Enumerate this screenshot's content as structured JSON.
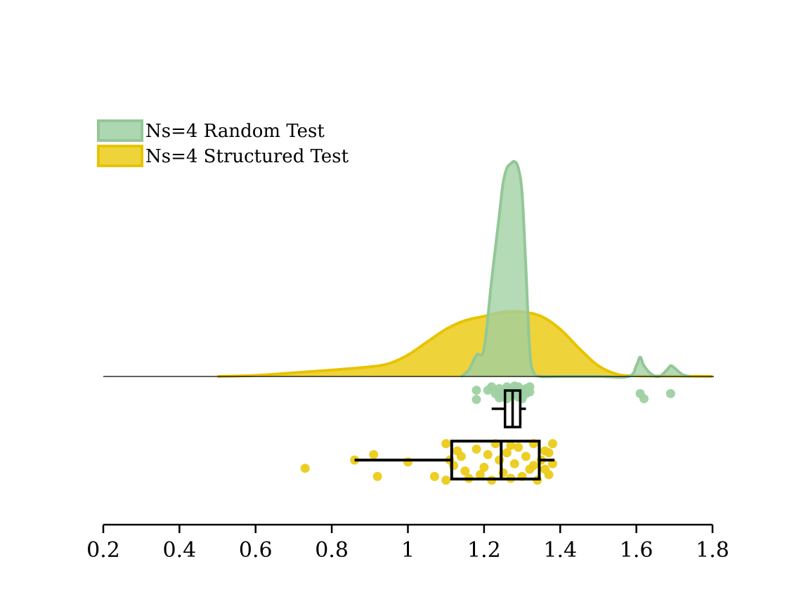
{
  "chart_data": {
    "type": "raincloud",
    "title": "",
    "xlabel": "",
    "ylabel": "",
    "xlim": [
      0.2,
      1.8
    ],
    "x_ticks": [
      0.2,
      0.4,
      0.6,
      0.8,
      1,
      1.2,
      1.4,
      1.6,
      1.8
    ],
    "x_tick_labels": [
      "0.2",
      "0.4",
      "0.6",
      "0.8",
      "1",
      "1.2",
      "1.4",
      "1.6",
      "1.8"
    ],
    "grid": false,
    "legend_position": "top-left",
    "series": [
      {
        "name": "Ns=4 Random Test",
        "color": "#9fd0a2",
        "edge_color": "#93c796",
        "density": {
          "x": [
            1.14,
            1.16,
            1.18,
            1.2,
            1.22,
            1.24,
            1.25,
            1.26,
            1.27,
            1.28,
            1.29,
            1.3,
            1.31,
            1.32,
            1.33,
            1.35,
            1.4,
            1.5,
            1.58,
            1.6,
            1.61,
            1.62,
            1.64,
            1.66,
            1.68,
            1.69,
            1.7,
            1.72,
            1.74
          ],
          "y": [
            0.0,
            0.03,
            0.1,
            0.13,
            0.45,
            0.75,
            0.9,
            0.97,
            0.99,
            1.0,
            0.97,
            0.85,
            0.5,
            0.12,
            0.02,
            0.0,
            0.0,
            0.0,
            0.0,
            0.05,
            0.09,
            0.05,
            0.01,
            0.0,
            0.03,
            0.05,
            0.04,
            0.01,
            0.0
          ]
        },
        "box": {
          "whisker_low": 1.22,
          "q1": 1.255,
          "median": 1.275,
          "q3": 1.295,
          "whisker_high": 1.31
        },
        "points": [
          [
            1.18,
            1.1
          ],
          [
            1.21,
            1.1
          ],
          [
            1.22,
            1.3
          ],
          [
            1.23,
            0.9
          ],
          [
            1.24,
            1.2
          ],
          [
            1.25,
            1.0
          ],
          [
            1.25,
            0.7
          ],
          [
            1.26,
            1.3
          ],
          [
            1.27,
            0.8
          ],
          [
            1.27,
            1.2
          ],
          [
            1.28,
            1.0
          ],
          [
            1.29,
            0.7
          ],
          [
            1.29,
            1.3
          ],
          [
            1.3,
            1.1
          ],
          [
            1.3,
            0.8
          ],
          [
            1.31,
            1.2
          ],
          [
            1.31,
            0.9
          ],
          [
            1.32,
            1.3
          ],
          [
            1.32,
            1.0
          ],
          [
            1.26,
            0.6
          ],
          [
            1.28,
            1.35
          ],
          [
            1.24,
            0.65
          ],
          [
            1.3,
            0.6
          ],
          [
            1.27,
            1.05
          ],
          [
            1.18,
            0.55
          ],
          [
            1.61,
            0.9
          ],
          [
            1.62,
            0.6
          ],
          [
            1.69,
            0.9
          ]
        ]
      },
      {
        "name": "Ns=4 Structured Test",
        "color": "#eccb18",
        "edge_color": "#e8c300",
        "density": {
          "x": [
            0.5,
            0.6,
            0.7,
            0.8,
            0.9,
            0.95,
            1.0,
            1.05,
            1.1,
            1.15,
            1.2,
            1.25,
            1.3,
            1.35,
            1.4,
            1.45,
            1.5,
            1.55,
            1.6,
            1.7,
            1.8
          ],
          "y": [
            0.0,
            0.005,
            0.017,
            0.03,
            0.045,
            0.06,
            0.1,
            0.16,
            0.22,
            0.26,
            0.28,
            0.3,
            0.3,
            0.28,
            0.22,
            0.13,
            0.05,
            0.01,
            0.003,
            0.002,
            0.0
          ]
        },
        "box": {
          "whisker_low": 0.86,
          "q1": 1.115,
          "median": 1.245,
          "q3": 1.345,
          "whisker_high": 1.385
        },
        "points": [
          [
            0.73,
            0.45
          ],
          [
            0.86,
            0.0
          ],
          [
            0.91,
            -0.3
          ],
          [
            0.92,
            0.9
          ],
          [
            1.0,
            0.1
          ],
          [
            1.07,
            0.9
          ],
          [
            1.1,
            -0.9
          ],
          [
            1.1,
            1.1
          ],
          [
            1.12,
            0.3
          ],
          [
            1.14,
            -0.2
          ],
          [
            1.15,
            0.6
          ],
          [
            1.16,
            1.0
          ],
          [
            1.18,
            -0.6
          ],
          [
            1.2,
            0.4
          ],
          [
            1.22,
            1.1
          ],
          [
            1.23,
            -0.9
          ],
          [
            1.24,
            0.0
          ],
          [
            1.25,
            0.7
          ],
          [
            1.26,
            -0.4
          ],
          [
            1.27,
            1.0
          ],
          [
            1.28,
            0.2
          ],
          [
            1.29,
            -0.7
          ],
          [
            1.3,
            0.9
          ],
          [
            1.31,
            -0.2
          ],
          [
            1.32,
            0.5
          ],
          [
            1.33,
            -0.9
          ],
          [
            1.34,
            1.1
          ],
          [
            1.35,
            0.0
          ],
          [
            1.36,
            -0.5
          ],
          [
            1.37,
            0.8
          ],
          [
            1.37,
            -0.4
          ],
          [
            1.38,
            0.2
          ],
          [
            1.38,
            -0.9
          ],
          [
            1.36,
            0.5
          ],
          [
            1.13,
            -0.5
          ],
          [
            1.19,
            0.8
          ],
          [
            1.21,
            -0.3
          ],
          [
            1.27,
            -0.8
          ],
          [
            1.33,
            0.3
          ],
          [
            1.11,
            0.0
          ]
        ]
      }
    ]
  }
}
